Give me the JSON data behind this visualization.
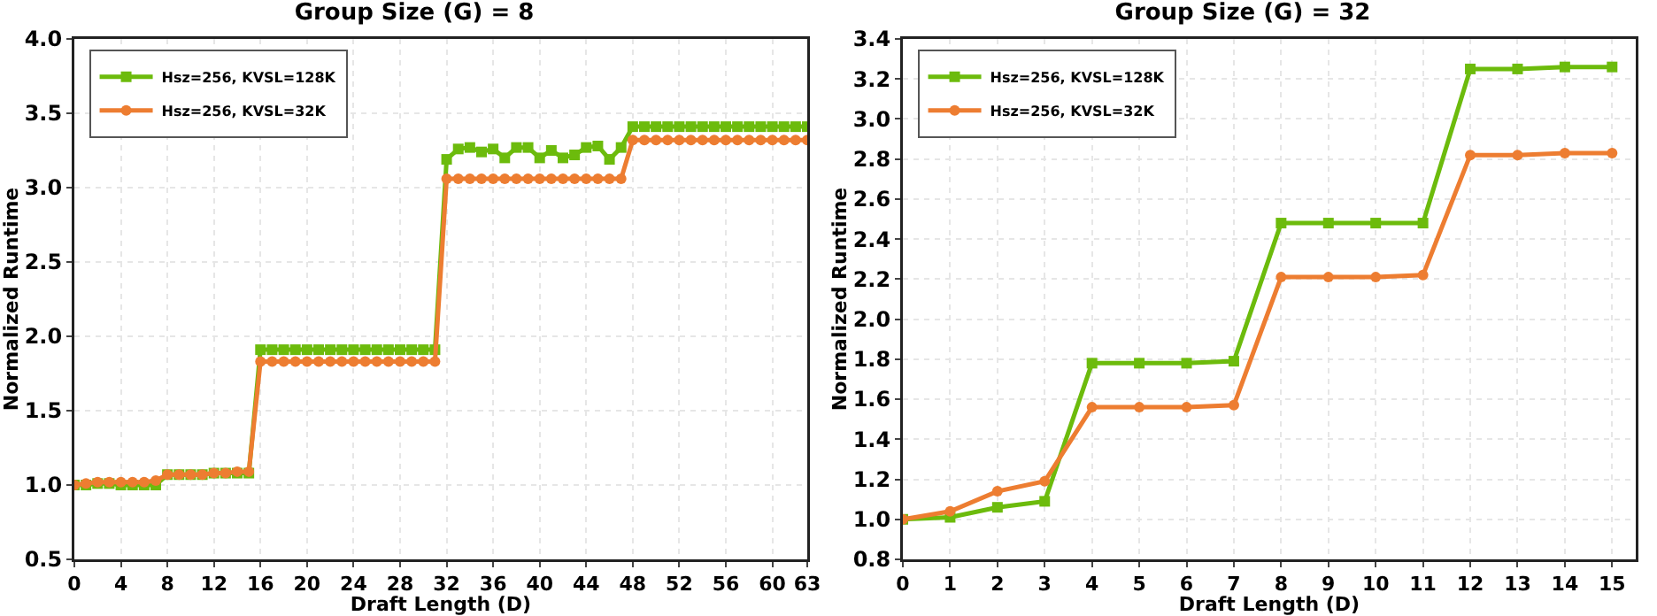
{
  "chart_data": [
    {
      "type": "line",
      "title": "Group Size (G) = 8",
      "xlabel": "Draft Length (D)",
      "ylabel": "Normalized Runtime",
      "x": [
        0,
        1,
        2,
        3,
        4,
        5,
        6,
        7,
        8,
        9,
        10,
        11,
        12,
        13,
        14,
        15,
        16,
        17,
        18,
        19,
        20,
        21,
        22,
        23,
        24,
        25,
        26,
        27,
        28,
        29,
        30,
        31,
        32,
        33,
        34,
        35,
        36,
        37,
        38,
        39,
        40,
        41,
        42,
        43,
        44,
        45,
        46,
        47,
        48,
        49,
        50,
        51,
        52,
        53,
        54,
        55,
        56,
        57,
        58,
        59,
        60,
        61,
        62,
        63
      ],
      "series": [
        {
          "name": "Hsz=256, KVSL=128K",
          "color": "#6cbb0c",
          "marker": "square",
          "values": [
            1.0,
            1.0,
            1.01,
            1.01,
            1.0,
            1.0,
            1.0,
            1.0,
            1.07,
            1.07,
            1.07,
            1.07,
            1.08,
            1.08,
            1.08,
            1.08,
            1.91,
            1.91,
            1.91,
            1.91,
            1.91,
            1.91,
            1.91,
            1.91,
            1.91,
            1.91,
            1.91,
            1.91,
            1.91,
            1.91,
            1.91,
            1.91,
            3.19,
            3.26,
            3.27,
            3.24,
            3.26,
            3.2,
            3.27,
            3.27,
            3.2,
            3.25,
            3.2,
            3.22,
            3.27,
            3.28,
            3.19,
            3.27,
            3.41,
            3.41,
            3.41,
            3.41,
            3.41,
            3.41,
            3.41,
            3.41,
            3.41,
            3.41,
            3.41,
            3.41,
            3.41,
            3.41,
            3.41,
            3.41
          ]
        },
        {
          "name": "Hsz=256, KVSL=32K",
          "color": "#ed7d31",
          "marker": "circle",
          "values": [
            1.0,
            1.01,
            1.02,
            1.02,
            1.02,
            1.02,
            1.02,
            1.03,
            1.07,
            1.07,
            1.07,
            1.07,
            1.08,
            1.08,
            1.09,
            1.09,
            1.83,
            1.83,
            1.83,
            1.83,
            1.83,
            1.83,
            1.83,
            1.83,
            1.83,
            1.83,
            1.83,
            1.83,
            1.83,
            1.83,
            1.83,
            1.83,
            3.06,
            3.06,
            3.06,
            3.06,
            3.06,
            3.06,
            3.06,
            3.06,
            3.06,
            3.06,
            3.06,
            3.06,
            3.06,
            3.06,
            3.06,
            3.06,
            3.32,
            3.32,
            3.32,
            3.32,
            3.32,
            3.32,
            3.32,
            3.32,
            3.32,
            3.32,
            3.32,
            3.32,
            3.32,
            3.32,
            3.32,
            3.32
          ]
        }
      ],
      "xlim": [
        0,
        63
      ],
      "xticks": [
        0,
        4,
        8,
        12,
        16,
        20,
        24,
        28,
        32,
        36,
        40,
        44,
        48,
        52,
        56,
        60,
        63
      ],
      "ylim": [
        0.5,
        4.0
      ],
      "yticks": [
        {
          "value": 0.5,
          "label": "0.5"
        },
        {
          "value": 1,
          "label": "1.0"
        },
        {
          "value": 1.5,
          "label": "1.5"
        },
        {
          "value": 2,
          "label": "2.0"
        },
        {
          "value": 2.5,
          "label": "2.5"
        },
        {
          "value": 3,
          "label": "3.0"
        },
        {
          "value": 3.5,
          "label": "3.5"
        },
        {
          "value": 4,
          "label": "4.0"
        }
      ],
      "grid": true,
      "legend": "top left"
    },
    {
      "type": "line",
      "title": "Group Size (G) = 32",
      "xlabel": "Draft Length (D)",
      "ylabel": "Normalized Runtime",
      "x": [
        0,
        1,
        2,
        3,
        4,
        5,
        6,
        7,
        8,
        9,
        10,
        11,
        12,
        13,
        14,
        15
      ],
      "series": [
        {
          "name": "Hsz=256, KVSL=128K",
          "color": "#6cbb0c",
          "marker": "square",
          "values": [
            1.0,
            1.01,
            1.06,
            1.09,
            1.78,
            1.78,
            1.78,
            1.79,
            2.48,
            2.48,
            2.48,
            2.48,
            3.25,
            3.25,
            3.26,
            3.26
          ]
        },
        {
          "name": "Hsz=256, KVSL=32K",
          "color": "#ed7d31",
          "marker": "circle",
          "values": [
            1.0,
            1.04,
            1.14,
            1.19,
            1.56,
            1.56,
            1.56,
            1.57,
            2.21,
            2.21,
            2.21,
            2.22,
            2.82,
            2.82,
            2.83,
            2.83
          ]
        }
      ],
      "xlim": [
        0,
        15.5
      ],
      "xticks": [
        0,
        1,
        2,
        3,
        4,
        5,
        6,
        7,
        8,
        9,
        10,
        11,
        12,
        13,
        14,
        15
      ],
      "ylim": [
        0.8,
        3.4
      ],
      "yticks": [
        {
          "value": 0.8,
          "label": "0.8"
        },
        {
          "value": 1,
          "label": "1.0"
        },
        {
          "value": 1.2,
          "label": "1.2"
        },
        {
          "value": 1.4,
          "label": "1.4"
        },
        {
          "value": 1.6,
          "label": "1.6"
        },
        {
          "value": 1.8,
          "label": "1.8"
        },
        {
          "value": 2,
          "label": "2.0"
        },
        {
          "value": 2.2,
          "label": "2.2"
        },
        {
          "value": 2.4,
          "label": "2.4"
        },
        {
          "value": 2.6,
          "label": "2.6"
        },
        {
          "value": 2.8,
          "label": "2.8"
        },
        {
          "value": 3,
          "label": "3.0"
        },
        {
          "value": 3.2,
          "label": "3.2"
        },
        {
          "value": 3.4,
          "label": "3.4"
        }
      ],
      "grid": true,
      "legend": "top left"
    }
  ]
}
